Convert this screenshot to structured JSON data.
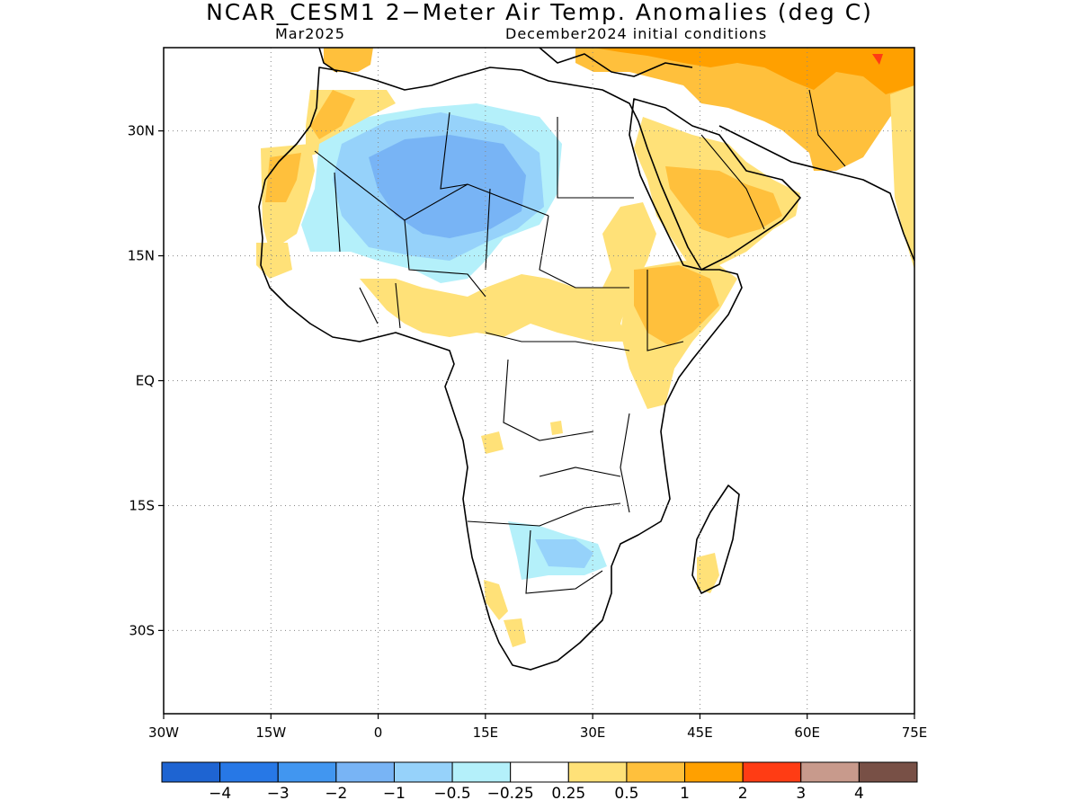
{
  "header": {
    "title": "NCAR_CESM1 2−Meter Air Temp. Anomalies (deg C)",
    "subtitle_left": "Mar2025",
    "subtitle_right": "December2024 initial conditions"
  },
  "map": {
    "lon_range": [
      -30,
      75
    ],
    "lat_range": [
      -40,
      40
    ],
    "lon_ticks": [
      {
        "value": -30,
        "label": "30W"
      },
      {
        "value": -15,
        "label": "15W"
      },
      {
        "value": 0,
        "label": "0"
      },
      {
        "value": 15,
        "label": "15E"
      },
      {
        "value": 30,
        "label": "30E"
      },
      {
        "value": 45,
        "label": "45E"
      },
      {
        "value": 60,
        "label": "60E"
      },
      {
        "value": 75,
        "label": "75E"
      }
    ],
    "lat_ticks": [
      {
        "value": 30,
        "label": "30N"
      },
      {
        "value": 15,
        "label": "15N"
      },
      {
        "value": 0,
        "label": "EQ"
      },
      {
        "value": -15,
        "label": "15S"
      },
      {
        "value": -30,
        "label": "30S"
      }
    ],
    "grid": "dotted"
  },
  "colorbar": {
    "colors": [
      "#1e64d2",
      "#2778e6",
      "#4196f0",
      "#78b4f5",
      "#96d2fa",
      "#b4f0fa",
      "#ffffff",
      "#ffe178",
      "#ffc03c",
      "#ffa000",
      "#ff3c14",
      "#c89a8c",
      "#785046"
    ],
    "labels": [
      "−4",
      "−3",
      "−2",
      "−1",
      "−0.5",
      "−0.25",
      "0.25",
      "0.5",
      "1",
      "2",
      "3",
      "4"
    ]
  }
}
